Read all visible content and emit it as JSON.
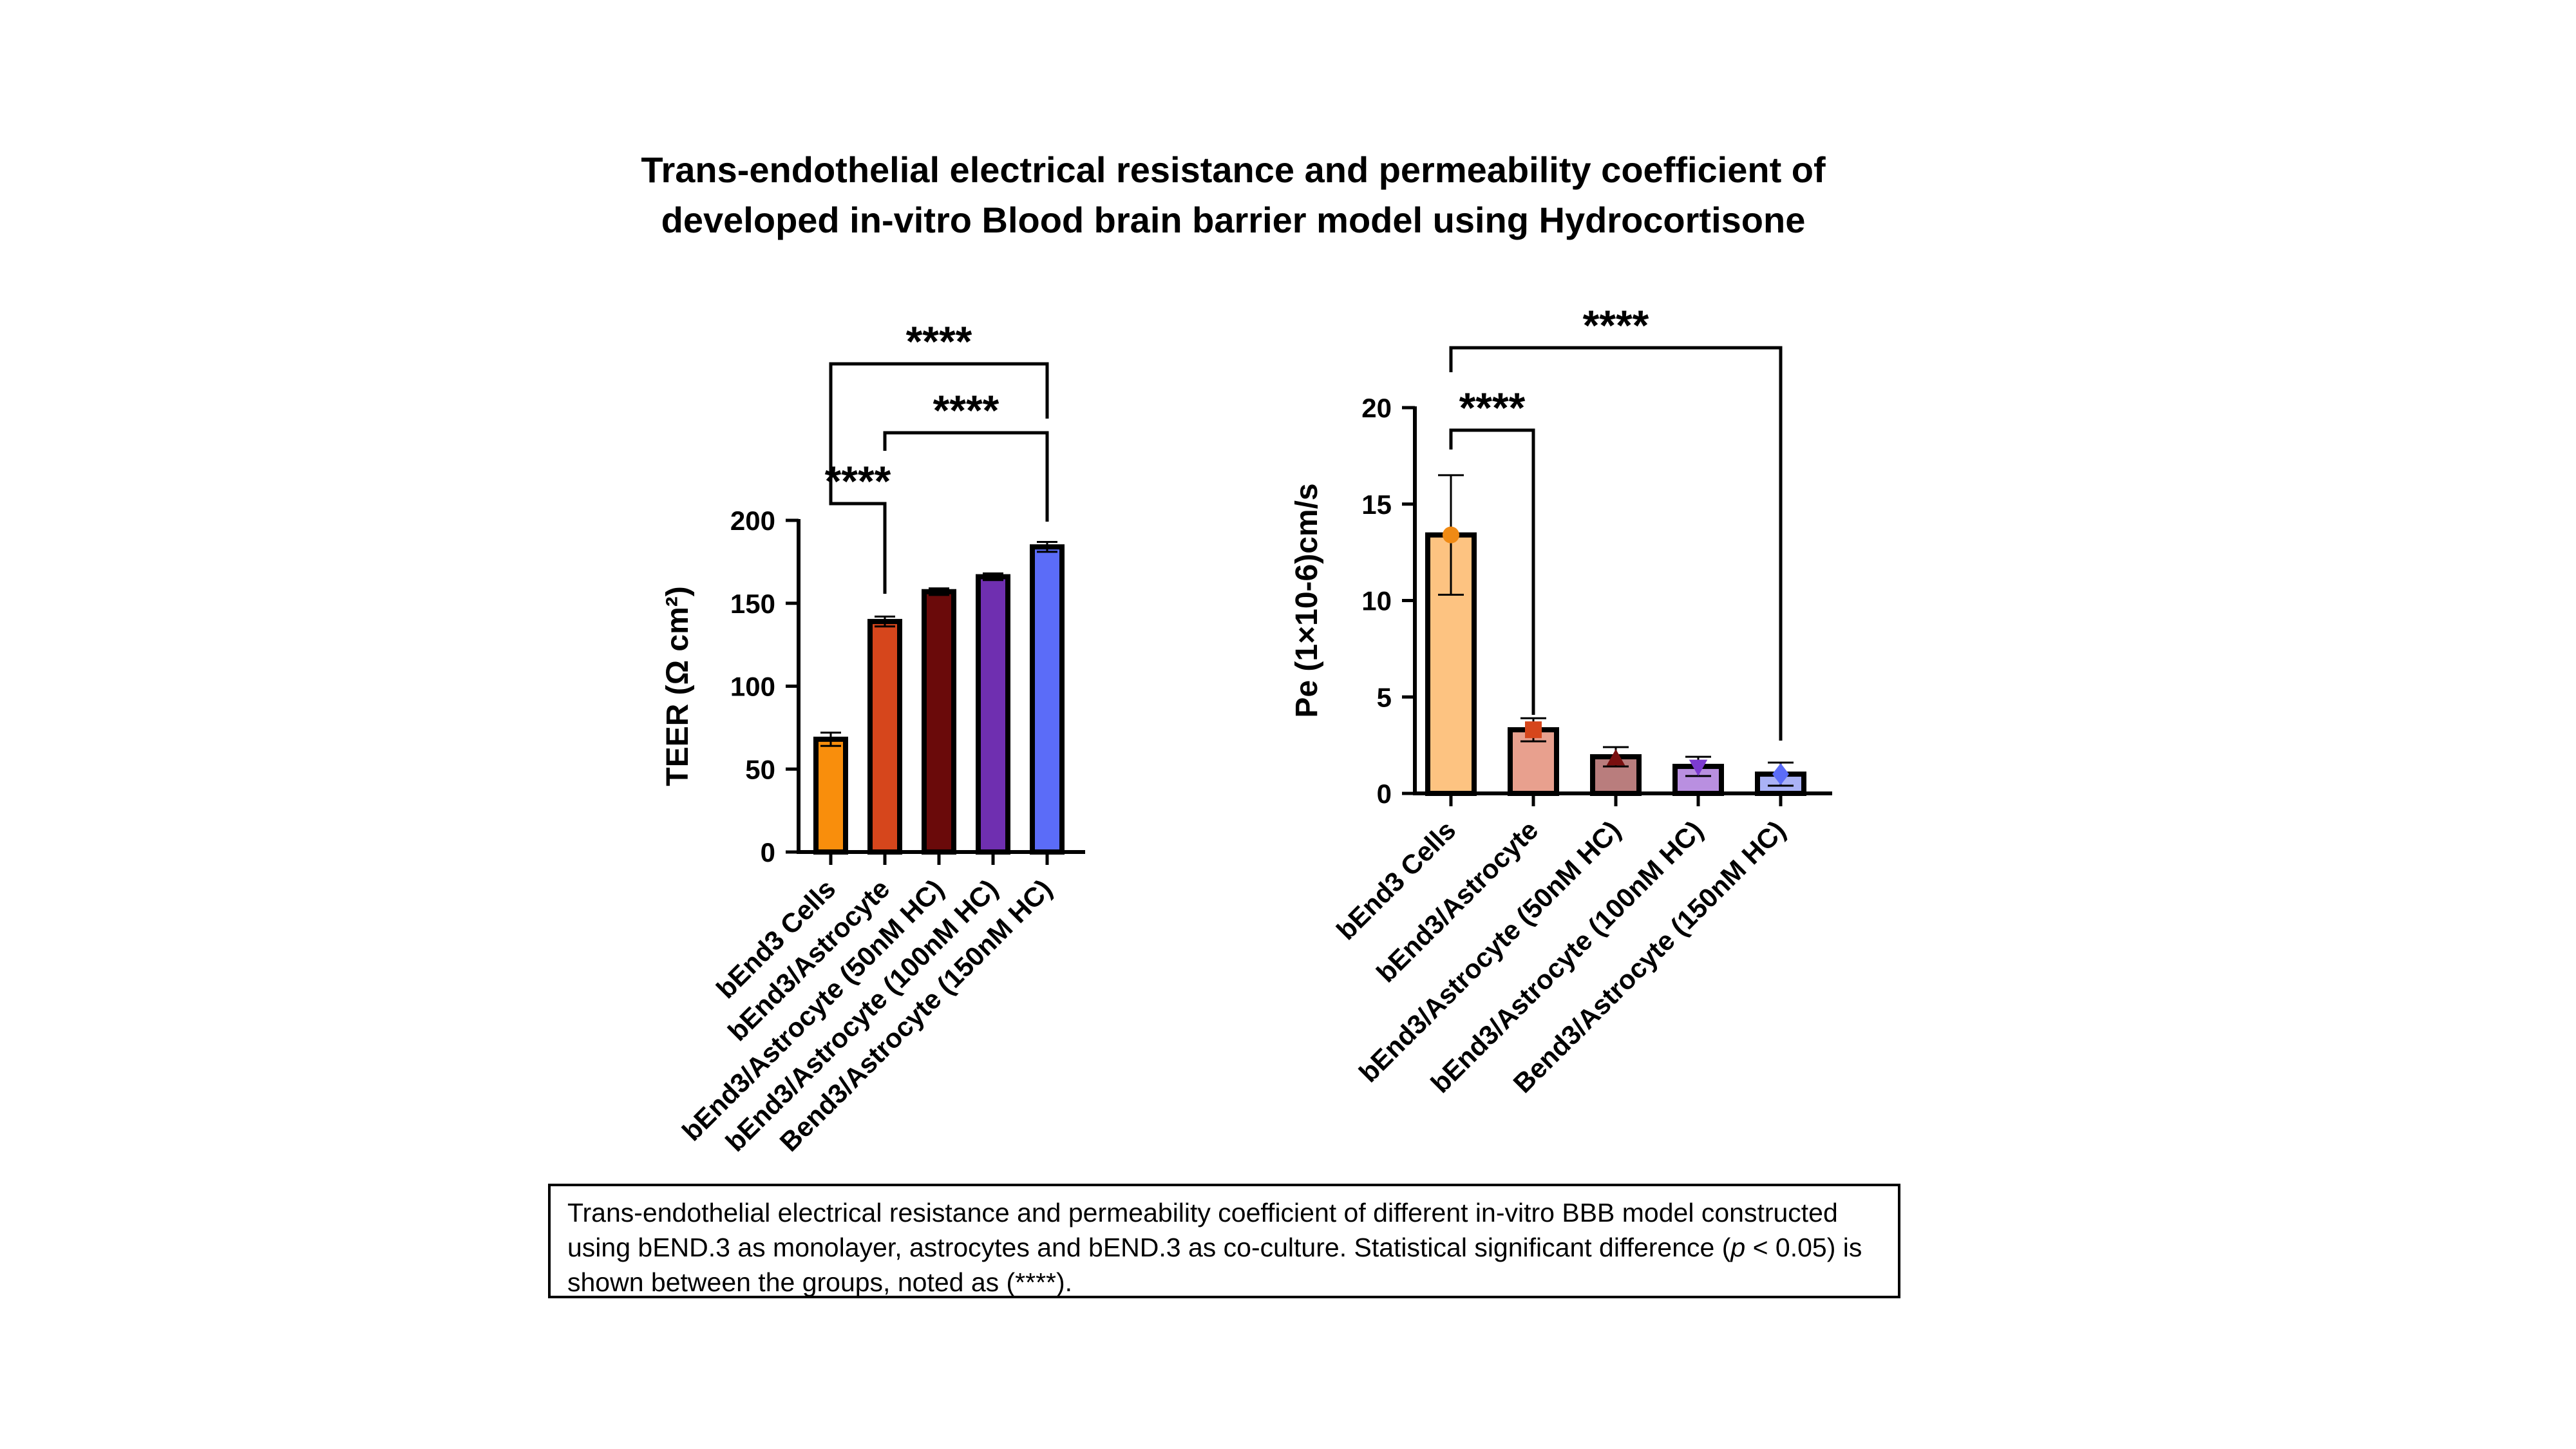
{
  "title": {
    "line1": "Trans-endothelial electrical resistance and permeability coefficient of",
    "line2": "developed in-vitro Blood brain barrier model using Hydrocortisone"
  },
  "chart_data": [
    {
      "type": "bar",
      "ylabel": "TEER (Ω cm²)",
      "ylim": [
        0,
        200
      ],
      "yticks": [
        0,
        50,
        100,
        150,
        200
      ],
      "categories": [
        "bEnd3 Cells",
        "bEnd3/Astrocyte",
        "bEnd3/Astrocyte (50nM HC)",
        "bEnd3/Astrocyte (100nM HC)",
        "Bend3/Astrocyte (150nM HC)"
      ],
      "values": [
        68,
        139,
        157,
        166,
        184
      ],
      "errors": [
        4,
        3,
        2,
        2,
        3
      ],
      "colors": [
        "#f98e0c",
        "#d6461c",
        "#6a0a0a",
        "#6f2fb0",
        "#5b6cf8"
      ],
      "significance": [
        {
          "from": 0,
          "to": 1,
          "label": "****"
        },
        {
          "from": 1,
          "to": 4,
          "label": "****"
        },
        {
          "from": 0,
          "to": 4,
          "label": "****"
        }
      ]
    },
    {
      "type": "bar",
      "ylabel": "Pe (1×10-6)cm/s",
      "ylim": [
        0,
        20
      ],
      "yticks": [
        0,
        5,
        10,
        15,
        20
      ],
      "categories": [
        "bEnd3 Cells",
        "bEnd3/Astrocyte",
        "bEnd3/Astrocyte (50nM HC)",
        "bEnd3/Astrocyte (100nM HC)",
        "Bend3/Astrocyte (150nM HC)"
      ],
      "values": [
        13.4,
        3.3,
        1.9,
        1.4,
        1.0
      ],
      "errors": [
        3.1,
        0.6,
        0.5,
        0.5,
        0.6
      ],
      "point_values": [
        13.4,
        3.3,
        1.8,
        1.4,
        1.0
      ],
      "markers": [
        "circle",
        "square",
        "triangle-up",
        "triangle-down",
        "diamond"
      ],
      "colors": [
        "#fdc381",
        "#e8a08e",
        "#b97d7d",
        "#b98fe0",
        "#aab2f6"
      ],
      "point_colors": [
        "#f08a14",
        "#d6461c",
        "#7a1010",
        "#7d3bd0",
        "#5b6cf8"
      ],
      "significance": [
        {
          "from": 0,
          "to": 1,
          "label": "****"
        },
        {
          "from": 0,
          "to": 4,
          "label": "****"
        }
      ]
    }
  ],
  "caption": {
    "text_part1": "Trans-endothelial electrical resistance and permeability coefficient of different in-vitro BBB model constructed using bEND.3 as monolayer, astrocytes and bEND.3 as co-culture. Statistical significant difference (",
    "p_symbol": "p",
    "text_part2": " < 0.05) is shown between the groups, noted as (****)."
  }
}
